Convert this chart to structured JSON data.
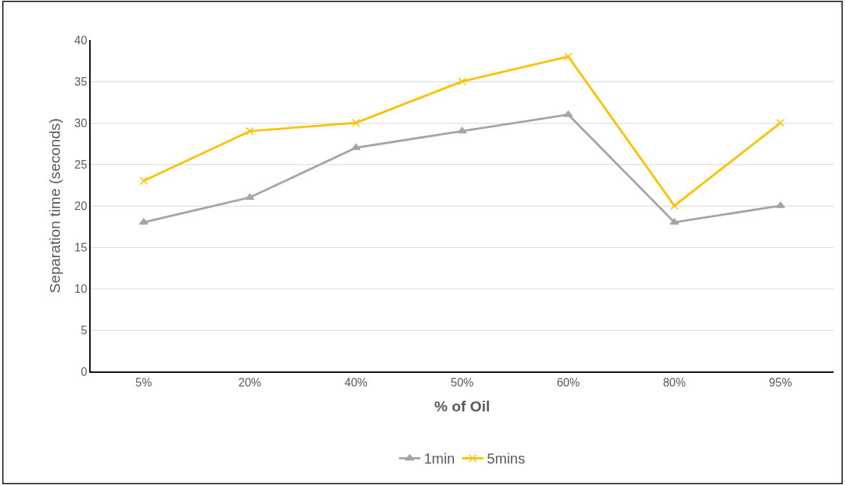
{
  "chart_data": {
    "type": "line",
    "xlabel": "% of Oil",
    "ylabel": "Separation time (seconds)",
    "categories": [
      "5%",
      "20%",
      "40%",
      "50%",
      "60%",
      "80%",
      "95%"
    ],
    "series": [
      {
        "name": "1min",
        "color": "#a5a5a5",
        "marker": "triangle",
        "values": [
          18,
          21,
          27,
          29,
          31,
          18,
          20
        ]
      },
      {
        "name": "5mins",
        "color": "#ffc000",
        "marker": "cross",
        "values": [
          23,
          29,
          30,
          35,
          38,
          20,
          30
        ]
      }
    ],
    "ylim": [
      0,
      40
    ],
    "yticks": [
      0,
      5,
      10,
      15,
      20,
      25,
      30,
      35,
      40
    ],
    "grid": "y",
    "legend": "bottom",
    "line_style": "solid"
  }
}
